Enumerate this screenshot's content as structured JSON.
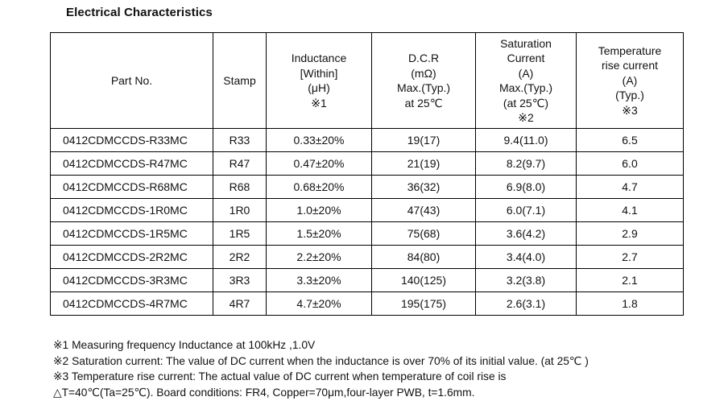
{
  "title": "Electrical Characteristics",
  "table": {
    "headers": [
      {
        "lines": [
          "Part No."
        ]
      },
      {
        "lines": [
          "Stamp"
        ]
      },
      {
        "lines": [
          "Inductance",
          "[Within]",
          "(μH)",
          "※1"
        ]
      },
      {
        "lines": [
          "D.C.R",
          "(mΩ)",
          "Max.(Typ.)",
          "at 25℃"
        ]
      },
      {
        "lines": [
          "Saturation",
          "Current",
          "(A)",
          "Max.(Typ.)",
          "(at 25℃)",
          "※2"
        ]
      },
      {
        "lines": [
          "Temperature",
          "rise current",
          "(A)",
          "(Typ.)",
          "※3"
        ]
      }
    ],
    "rows": [
      {
        "part": "0412CDMCCDS-R33MC",
        "stamp": "R33",
        "inductance": "0.33±20%",
        "dcr": "19(17)",
        "sat": "9.4(11.0)",
        "temp": "6.5"
      },
      {
        "part": "0412CDMCCDS-R47MC",
        "stamp": "R47",
        "inductance": "0.47±20%",
        "dcr": "21(19)",
        "sat": "8.2(9.7)",
        "temp": "6.0"
      },
      {
        "part": "0412CDMCCDS-R68MC",
        "stamp": "R68",
        "inductance": "0.68±20%",
        "dcr": "36(32)",
        "sat": "6.9(8.0)",
        "temp": "4.7"
      },
      {
        "part": "0412CDMCCDS-1R0MC",
        "stamp": "1R0",
        "inductance": "1.0±20%",
        "dcr": "47(43)",
        "sat": "6.0(7.1)",
        "temp": "4.1"
      },
      {
        "part": "0412CDMCCDS-1R5MC",
        "stamp": "1R5",
        "inductance": "1.5±20%",
        "dcr": "75(68)",
        "sat": "3.6(4.2)",
        "temp": "2.9"
      },
      {
        "part": "0412CDMCCDS-2R2MC",
        "stamp": "2R2",
        "inductance": "2.2±20%",
        "dcr": "84(80)",
        "sat": "3.4(4.0)",
        "temp": "2.7"
      },
      {
        "part": "0412CDMCCDS-3R3MC",
        "stamp": "3R3",
        "inductance": "3.3±20%",
        "dcr": "140(125)",
        "sat": "3.2(3.8)",
        "temp": "2.1"
      },
      {
        "part": "0412CDMCCDS-4R7MC",
        "stamp": "4R7",
        "inductance": "4.7±20%",
        "dcr": "195(175)",
        "sat": "2.6(3.1)",
        "temp": "1.8"
      }
    ]
  },
  "notes": [
    "※1 Measuring frequency  Inductance at 100kHz ,1.0V",
    "※2 Saturation current: The value of DC current when the inductance is over 70% of its initial value. (at 25℃ )",
    "※3 Temperature rise current: The actual value of DC current when temperature of coil rise is",
    "△T=40℃(Ta=25℃). Board conditions: FR4, Copper=70μm,four-layer PWB, t=1.6mm."
  ]
}
